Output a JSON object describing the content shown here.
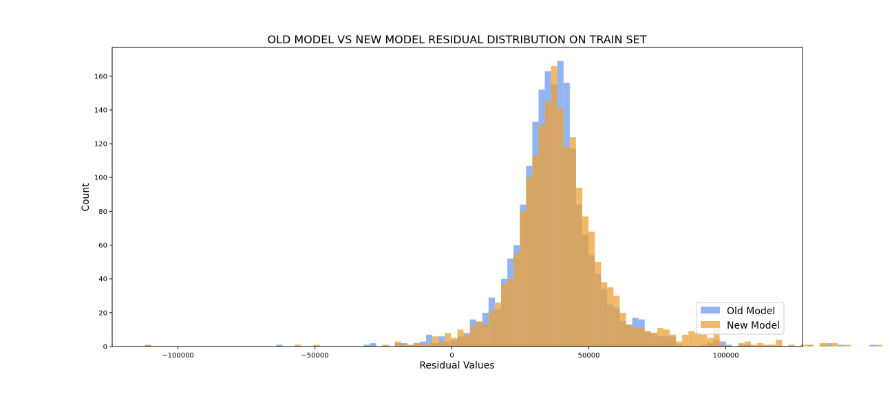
{
  "chart_data": {
    "type": "bar",
    "subtype": "overlaid-histogram",
    "title": "OLD MODEL VS NEW MODEL RESIDUAL DISTRIBUTION ON TRAIN SET",
    "xlabel": "Residual Values",
    "ylabel": "Count",
    "xlim": [
      -124000,
      128000
    ],
    "ylim": [
      0,
      177
    ],
    "xticks": [
      -100000,
      -50000,
      0,
      50000,
      100000
    ],
    "xtick_labels": [
      "−100000",
      "−50000",
      "0",
      "50000",
      "100000"
    ],
    "yticks": [
      0,
      20,
      40,
      60,
      80,
      100,
      120,
      140,
      160
    ],
    "ytick_labels": [
      "0",
      "20",
      "40",
      "60",
      "80",
      "100",
      "120",
      "140",
      "160"
    ],
    "legend_position": "lower-right",
    "grid": false,
    "series": [
      {
        "name": "Old Model",
        "color": "#6495ed",
        "opacity": 0.7,
        "bin_start": -112000,
        "bin_width": 2280,
        "values": [
          1,
          0,
          0,
          0,
          0,
          0,
          0,
          0,
          0,
          0,
          0,
          0,
          0,
          0,
          0,
          0,
          0,
          0,
          0,
          0,
          0,
          1,
          0,
          0,
          0,
          0,
          0,
          0,
          0,
          0,
          0,
          0,
          0,
          0,
          0,
          1,
          2,
          0,
          0,
          0,
          2,
          2,
          1,
          2,
          3,
          7,
          2,
          6,
          3,
          4,
          6,
          8,
          16,
          14,
          20,
          29,
          22,
          40,
          52,
          60,
          84,
          107,
          133,
          152,
          163,
          155,
          169,
          156,
          117,
          84,
          66,
          54,
          43,
          34,
          25,
          23,
          15,
          13,
          17,
          16,
          9,
          8,
          6,
          6,
          6,
          1,
          0,
          0,
          0,
          1,
          2,
          4,
          3,
          1,
          0,
          1,
          1,
          0,
          0,
          0,
          0,
          0,
          0,
          0,
          0,
          0,
          1,
          0,
          1,
          2,
          0,
          1,
          0,
          0,
          0,
          0,
          1,
          0,
          0,
          0,
          0,
          1
        ]
      },
      {
        "name": "New Model",
        "color": "#eba035",
        "opacity": 0.75,
        "bin_start": -112000,
        "bin_width": 2280,
        "values": [
          1,
          0,
          0,
          0,
          0,
          0,
          0,
          0,
          0,
          0,
          0,
          0,
          0,
          0,
          0,
          0,
          0,
          0,
          0,
          0,
          0,
          0,
          0,
          0,
          1,
          0,
          0,
          1,
          0,
          0,
          0,
          0,
          0,
          0,
          0,
          0,
          0,
          0,
          1,
          0,
          3,
          1,
          1,
          2,
          1,
          2,
          6,
          3,
          8,
          5,
          10,
          7,
          12,
          15,
          13,
          21,
          26,
          37,
          40,
          55,
          80,
          100,
          113,
          131,
          145,
          166,
          141,
          118,
          124,
          94,
          77,
          68,
          50,
          38,
          35,
          30,
          20,
          13,
          11,
          11,
          9,
          8,
          11,
          10,
          7,
          3,
          7,
          9,
          8,
          7,
          5,
          11,
          1,
          0,
          0,
          2,
          3,
          1,
          2,
          1,
          1,
          4,
          0,
          1,
          0,
          1,
          1,
          0,
          2,
          1,
          2,
          0,
          1,
          0,
          0,
          0,
          0,
          1,
          0,
          0,
          0
        ]
      }
    ]
  },
  "legend": {
    "items": [
      {
        "label": "Old Model",
        "color": "#6495ed"
      },
      {
        "label": "New Model",
        "color": "#eba035"
      }
    ]
  }
}
